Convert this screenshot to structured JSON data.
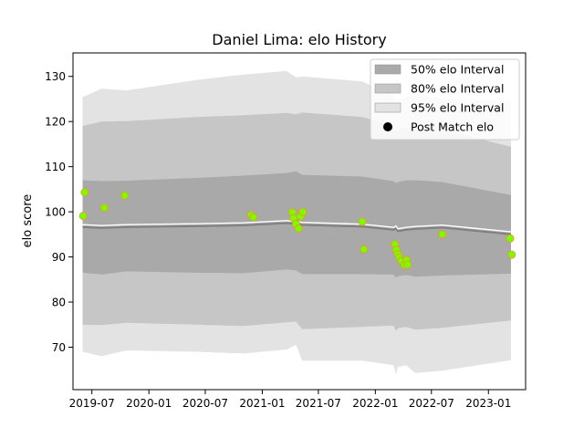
{
  "chart_data": {
    "type": "line",
    "title": "Daniel Lima: elo History",
    "xlabel": "",
    "ylabel": "elo score",
    "xlim": [
      "2019-05-01",
      "2023-05-01"
    ],
    "ylim": [
      60.6,
      135.2
    ],
    "grid": false,
    "legend_position": "top-right",
    "x_ticks": [
      "2019-07",
      "2020-01",
      "2020-07",
      "2021-01",
      "2021-07",
      "2022-01",
      "2022-07",
      "2023-01"
    ],
    "y_ticks": [
      70,
      80,
      90,
      100,
      110,
      120,
      130
    ],
    "legend": [
      {
        "label": "50% elo Interval",
        "kind": "patch",
        "color": "#a9a9a9"
      },
      {
        "label": "80% elo Interval",
        "kind": "patch",
        "color": "#c6c6c6"
      },
      {
        "label": "95% elo Interval",
        "kind": "patch",
        "color": "#e3e3e3"
      },
      {
        "label": "Post Match elo",
        "kind": "marker",
        "color": "#000000"
      }
    ],
    "band_x": [
      "2019-06-01",
      "2019-08-01",
      "2019-10-20",
      "2020-06-01",
      "2020-11-01",
      "2021-03-20",
      "2021-04-20",
      "2021-05-10",
      "2021-11-20",
      "2022-03-01",
      "2022-03-08",
      "2022-03-15",
      "2022-04-10",
      "2022-05-10",
      "2022-08-05",
      "2023-03-15"
    ],
    "mean": [
      96.6,
      96.4,
      96.6,
      96.8,
      97.0,
      97.5,
      97.3,
      97.1,
      96.7,
      96.0,
      96.3,
      95.7,
      96.0,
      96.2,
      96.5,
      95.0
    ],
    "band_95": {
      "upper": [
        125.4,
        127.3,
        126.9,
        129.2,
        130.4,
        131.2,
        129.8,
        130.0,
        128.9,
        125.6,
        124.5,
        124.9,
        125.5,
        125.9,
        125.0,
        124.6
      ],
      "lower": [
        69.0,
        68.0,
        69.3,
        69.0,
        68.6,
        69.5,
        70.5,
        67.0,
        67.0,
        66.0,
        63.9,
        65.6,
        66.0,
        64.3,
        64.8,
        67.1
      ]
    },
    "band_80": {
      "upper": [
        119.0,
        120.0,
        120.1,
        121.0,
        121.4,
        121.9,
        121.6,
        122.0,
        121.0,
        119.0,
        117.6,
        118.2,
        118.6,
        118.8,
        118.2,
        114.4
      ],
      "lower": [
        75.0,
        74.9,
        75.4,
        75.0,
        74.7,
        75.5,
        75.7,
        74.0,
        74.5,
        74.8,
        73.6,
        74.2,
        74.5,
        73.9,
        74.3,
        75.9
      ]
    },
    "band_50": {
      "upper": [
        107.0,
        106.8,
        106.9,
        107.5,
        108.0,
        108.6,
        109.0,
        108.2,
        107.8,
        106.8,
        106.4,
        106.6,
        107.0,
        107.0,
        106.6,
        103.7
      ],
      "lower": [
        86.5,
        86.1,
        86.8,
        86.5,
        86.4,
        87.2,
        87.0,
        86.2,
        86.2,
        86.1,
        85.4,
        85.7,
        86.0,
        85.6,
        85.9,
        86.3
      ]
    },
    "points": [
      {
        "date": "2019-06-03",
        "elo": 99.1
      },
      {
        "date": "2019-06-08",
        "elo": 104.3
      },
      {
        "date": "2019-08-10",
        "elo": 100.9
      },
      {
        "date": "2019-10-15",
        "elo": 103.6
      },
      {
        "date": "2020-11-26",
        "elo": 99.3
      },
      {
        "date": "2020-12-03",
        "elo": 98.8
      },
      {
        "date": "2021-04-08",
        "elo": 99.9
      },
      {
        "date": "2021-04-12",
        "elo": 98.6
      },
      {
        "date": "2021-04-20",
        "elo": 97.3
      },
      {
        "date": "2021-04-28",
        "elo": 96.3
      },
      {
        "date": "2021-05-05",
        "elo": 99.0
      },
      {
        "date": "2021-05-12",
        "elo": 100.0
      },
      {
        "date": "2021-11-20",
        "elo": 97.8
      },
      {
        "date": "2021-11-25",
        "elo": 91.7
      },
      {
        "date": "2022-03-05",
        "elo": 92.8
      },
      {
        "date": "2022-03-10",
        "elo": 91.6
      },
      {
        "date": "2022-03-15",
        "elo": 90.6
      },
      {
        "date": "2022-03-20",
        "elo": 89.9
      },
      {
        "date": "2022-03-26",
        "elo": 89.1
      },
      {
        "date": "2022-04-05",
        "elo": 88.2
      },
      {
        "date": "2022-04-12",
        "elo": 89.3
      },
      {
        "date": "2022-04-15",
        "elo": 88.3
      },
      {
        "date": "2022-08-05",
        "elo": 95.0
      },
      {
        "date": "2023-03-12",
        "elo": 94.1
      },
      {
        "date": "2023-03-17",
        "elo": 90.5
      }
    ],
    "colors": {
      "band_50": "#a9a9a9",
      "band_80": "#c6c6c6",
      "band_95": "#e3e3e3",
      "mean_line": "#808080",
      "mean_line_highlight": "#ffffff",
      "marker_face": "#7cfc00",
      "marker_edge": "#daa520"
    }
  }
}
